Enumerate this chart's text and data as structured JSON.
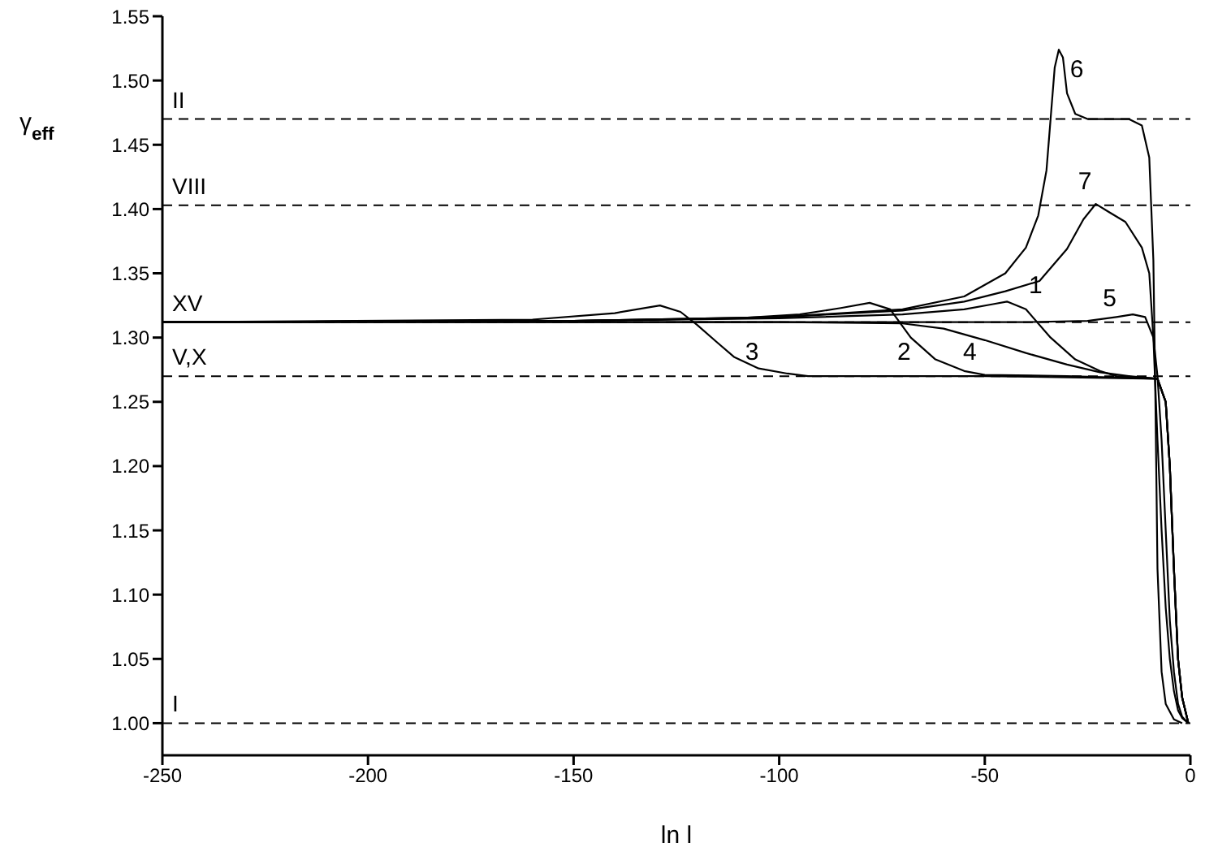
{
  "chart_data": {
    "type": "line",
    "xlabel": "ln l",
    "ylabel": "γ$_{eff}$",
    "xlim": [
      -250,
      0
    ],
    "xticks": [
      -250,
      -200,
      -150,
      -100,
      -50,
      0
    ],
    "ylim": [
      0.975,
      1.55
    ],
    "yticks": [
      {
        "value": 1.0,
        "label": "1.00"
      },
      {
        "value": 1.05,
        "label": "1.05"
      },
      {
        "value": 1.1,
        "label": "1.10"
      },
      {
        "value": 1.15,
        "label": "1.15"
      },
      {
        "value": 1.2,
        "label": "1.20"
      },
      {
        "value": 1.25,
        "label": "1.25"
      },
      {
        "value": 1.3,
        "label": "1.30"
      },
      {
        "value": 1.35,
        "label": "1.35"
      },
      {
        "value": 1.4,
        "label": "1.40"
      },
      {
        "value": 1.45,
        "label": "1.45"
      },
      {
        "value": 1.5,
        "label": "1.50"
      },
      {
        "value": 1.55,
        "label": "1.55"
      }
    ],
    "marker": "none",
    "line_style": "solid",
    "series": [
      {
        "color": "#000000",
        "x": [
          -250,
          -150,
          -100,
          -70,
          -55,
          -48,
          -44.6,
          -40,
          -34,
          -28,
          -22,
          -18,
          -12,
          -8,
          -6,
          -5,
          -4,
          -3,
          -2,
          -0.5
        ],
        "values": [
          1.312,
          1.313,
          1.315,
          1.318,
          1.322,
          1.326,
          1.328,
          1.322,
          1.3,
          1.283,
          1.274,
          1.27,
          1.269,
          1.268,
          1.25,
          1.2,
          1.12,
          1.05,
          1.02,
          1.0
        ]
      },
      {
        "color": "#000000",
        "x": [
          -250,
          -150,
          -110,
          -95,
          -85,
          -78,
          -73,
          -68,
          -62,
          -55,
          -50,
          -30,
          -8,
          -6,
          -5,
          -4,
          -3,
          -2,
          -0.5
        ],
        "values": [
          1.312,
          1.313,
          1.315,
          1.318,
          1.323,
          1.327,
          1.322,
          1.3,
          1.283,
          1.274,
          1.271,
          1.27,
          1.268,
          1.25,
          1.2,
          1.12,
          1.05,
          1.02,
          1.0
        ]
      },
      {
        "color": "#000000",
        "x": [
          -250,
          -160,
          -140,
          -129,
          -124,
          -120,
          -115,
          -111,
          -105,
          -98,
          -93,
          -50,
          -8,
          -6,
          -5,
          -4,
          -3,
          -2,
          -0.5
        ],
        "values": [
          1.312,
          1.314,
          1.319,
          1.325,
          1.32,
          1.31,
          1.296,
          1.285,
          1.276,
          1.272,
          1.27,
          1.27,
          1.268,
          1.25,
          1.2,
          1.12,
          1.05,
          1.02,
          1.0
        ]
      },
      {
        "color": "#000000",
        "x": [
          -250,
          -100,
          -70,
          -60,
          -50,
          -40,
          -30,
          -22,
          -15,
          -8,
          -6,
          -5,
          -4,
          -3,
          -2,
          -0.5
        ],
        "values": [
          1.312,
          1.312,
          1.311,
          1.307,
          1.298,
          1.288,
          1.279,
          1.273,
          1.27,
          1.268,
          1.25,
          1.2,
          1.12,
          1.05,
          1.02,
          1.0
        ]
      },
      {
        "color": "#000000",
        "x": [
          -250,
          -100,
          -40,
          -25,
          -18,
          -14,
          -11,
          -9,
          -8,
          -7,
          -6,
          -5,
          -4,
          -3,
          -2,
          -0.5
        ],
        "values": [
          1.312,
          1.312,
          1.312,
          1.313,
          1.316,
          1.318,
          1.316,
          1.3,
          1.27,
          1.22,
          1.15,
          1.08,
          1.04,
          1.015,
          1.005,
          1.0
        ]
      },
      {
        "color": "#000000",
        "x": [
          -250,
          -150,
          -100,
          -70,
          -55,
          -45,
          -40,
          -37,
          -35,
          -34,
          -33,
          -32,
          -31,
          -30,
          -28,
          -25,
          -20,
          -15,
          -11.8,
          -10,
          -9,
          -8.5,
          -8,
          -7,
          -6,
          -4,
          -2
        ],
        "values": [
          1.312,
          1.313,
          1.316,
          1.322,
          1.332,
          1.35,
          1.37,
          1.395,
          1.43,
          1.47,
          1.51,
          1.524,
          1.518,
          1.49,
          1.474,
          1.47,
          1.47,
          1.47,
          1.465,
          1.44,
          1.36,
          1.25,
          1.12,
          1.04,
          1.015,
          1.003,
          1.0
        ]
      },
      {
        "color": "#000000",
        "x": [
          -250,
          -150,
          -100,
          -70,
          -55,
          -45,
          -36.7,
          -30,
          -26,
          -23,
          -20,
          -15.8,
          -11.8,
          -10,
          -9,
          -8,
          -7,
          -6,
          -5,
          -4,
          -3,
          -2,
          -0.5
        ],
        "values": [
          1.312,
          1.313,
          1.316,
          1.321,
          1.328,
          1.336,
          1.344,
          1.369,
          1.392,
          1.404,
          1.398,
          1.39,
          1.37,
          1.35,
          1.3,
          1.22,
          1.15,
          1.09,
          1.05,
          1.025,
          1.01,
          1.004,
          1.0
        ]
      }
    ],
    "ref_lines": [
      {
        "axis": "y",
        "value": 1.47,
        "label": "II",
        "color": "#000000",
        "line_style": "dashed"
      },
      {
        "axis": "y",
        "value": 1.403,
        "label": "VIII",
        "color": "#000000",
        "line_style": "dashed"
      },
      {
        "axis": "y",
        "value": 1.312,
        "label": "XV",
        "color": "#000000",
        "line_style": "dashed"
      },
      {
        "axis": "y",
        "value": 1.27,
        "label": "V,X",
        "color": "#000000",
        "line_style": "dashed"
      },
      {
        "axis": "y",
        "value": 1.0,
        "label": "I",
        "color": "#000000",
        "line_style": "dashed"
      }
    ],
    "annotations": [
      {
        "text": "1",
        "x": -40,
        "y": 1.322
      },
      {
        "text": "2",
        "x": -72,
        "y": 1.27
      },
      {
        "text": "3",
        "x": -109,
        "y": 1.27
      },
      {
        "text": "4",
        "x": -56,
        "y": 1.27
      },
      {
        "text": "5",
        "x": -22,
        "y": 1.312
      },
      {
        "text": "6",
        "x": -30,
        "y": 1.49
      },
      {
        "text": "7",
        "x": -28,
        "y": 1.403
      }
    ]
  }
}
